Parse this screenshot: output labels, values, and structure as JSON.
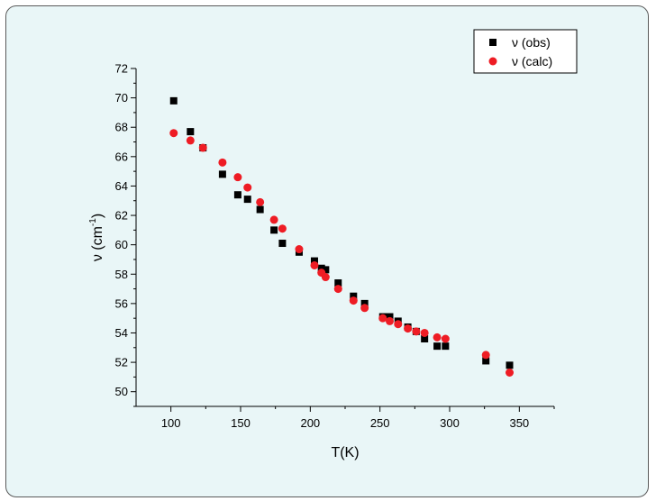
{
  "chart_data": {
    "type": "scatter",
    "title": "",
    "xlabel": "T(K)",
    "ylabel_parts": {
      "base": "ν (cm",
      "sup": "-1",
      "close": ")"
    },
    "xlim": [
      75,
      375
    ],
    "ylim": [
      49,
      72
    ],
    "x_ticks": [
      100,
      150,
      200,
      250,
      300,
      350
    ],
    "y_ticks": [
      50,
      52,
      54,
      56,
      58,
      60,
      62,
      64,
      66,
      68,
      70,
      72
    ],
    "legend_placement": "top-right",
    "grid": false,
    "series": [
      {
        "name": "ν (obs)",
        "marker": "square",
        "color": "#000000",
        "x": [
          102,
          114,
          123,
          137,
          148,
          155,
          164,
          174,
          180,
          192,
          203,
          208,
          211,
          220,
          231,
          239,
          252,
          257,
          263,
          270,
          276,
          282,
          291,
          297,
          326,
          343
        ],
        "y": [
          69.8,
          67.7,
          66.6,
          64.8,
          63.4,
          63.1,
          62.4,
          61.0,
          60.1,
          59.5,
          58.9,
          58.4,
          58.3,
          57.4,
          56.5,
          56.0,
          55.1,
          55.1,
          54.8,
          54.4,
          54.1,
          53.6,
          53.1,
          53.1,
          52.1,
          51.8
        ]
      },
      {
        "name": "ν (calc)",
        "marker": "circle",
        "color": "#ee1c24",
        "x": [
          102,
          114,
          123,
          137,
          148,
          155,
          164,
          174,
          180,
          192,
          203,
          208,
          211,
          220,
          231,
          239,
          252,
          257,
          263,
          270,
          276,
          282,
          291,
          297,
          326,
          343
        ],
        "y": [
          67.6,
          67.1,
          66.6,
          65.6,
          64.6,
          63.9,
          62.9,
          61.7,
          61.1,
          59.7,
          58.6,
          58.1,
          57.8,
          57.0,
          56.2,
          55.7,
          55.0,
          54.8,
          54.6,
          54.3,
          54.1,
          54.0,
          53.7,
          53.6,
          52.5,
          51.3
        ]
      }
    ]
  }
}
